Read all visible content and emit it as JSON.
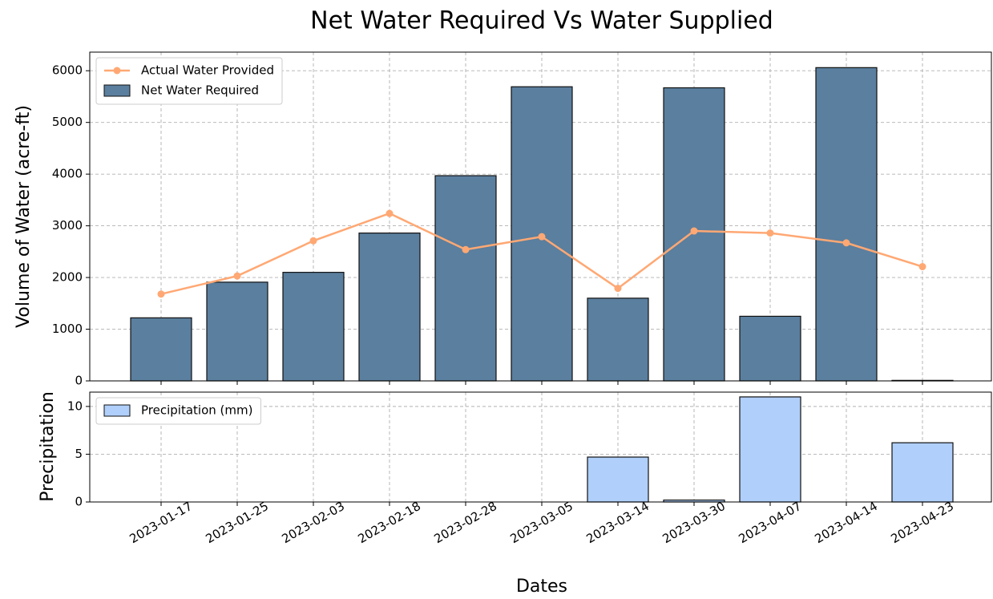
{
  "chart_data": [
    {
      "type": "bar",
      "title": "Net Water Required Vs Water Supplied",
      "y_label": "Volume of Water (acre-ft)",
      "categories": [
        "2023-01-17",
        "2023-01-25",
        "2023-02-03",
        "2023-02-18",
        "2023-02-28",
        "2023-03-05",
        "2023-03-14",
        "2023-03-30",
        "2023-04-07",
        "2023-04-14",
        "2023-04-23"
      ],
      "series": [
        {
          "name": "Actual Water Provided",
          "type": "line",
          "color": "#ffa874",
          "values": [
            1680,
            2030,
            2710,
            3240,
            2540,
            2790,
            1790,
            2900,
            2860,
            2670,
            2210
          ]
        },
        {
          "name": "Net Water Required",
          "type": "bar",
          "color": "#5b7f9e",
          "values": [
            1220,
            1910,
            2100,
            2860,
            3970,
            5690,
            1600,
            5670,
            1250,
            6060,
            10
          ]
        }
      ],
      "ylim": [
        0,
        6360
      ],
      "yticks": [
        0,
        1000,
        2000,
        3000,
        4000,
        5000,
        6000
      ],
      "grid": true,
      "legend": "upper left"
    },
    {
      "type": "bar",
      "y_label": "Precipitation",
      "x_label": "Dates",
      "series": [
        {
          "name": "Precipitation (mm)",
          "type": "bar",
          "color": "#b0cffa",
          "values": [
            0,
            0,
            0,
            0,
            0,
            0,
            4.7,
            0.2,
            11,
            0,
            6.2
          ]
        }
      ],
      "ylim": [
        0,
        11.5
      ],
      "yticks": [
        0,
        5,
        10
      ],
      "grid": true,
      "legend": "upper left"
    }
  ]
}
